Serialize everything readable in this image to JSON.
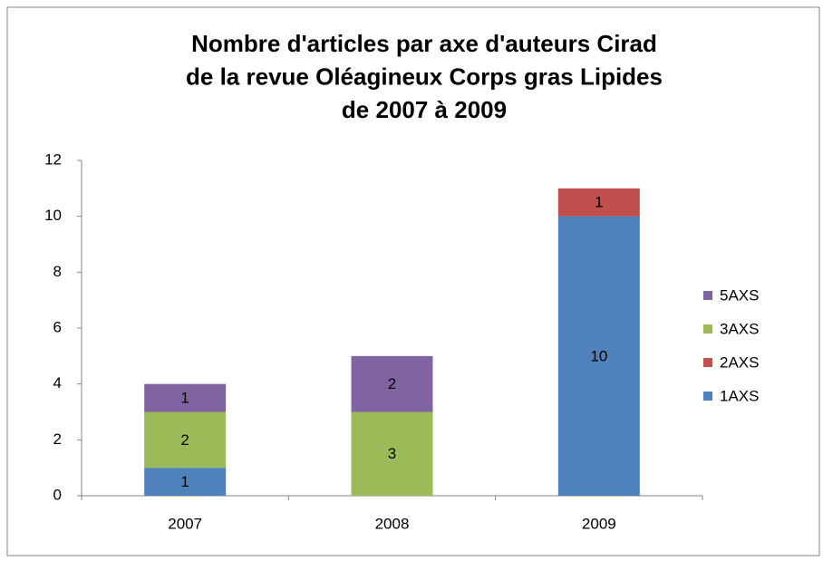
{
  "chart_data": {
    "type": "stacked_bar",
    "title": [
      "Nombre d'articles par axe d'auteurs Cirad",
      "de la revue Oléagineux Corps gras Lipides",
      "de 2007 à 2009"
    ],
    "categories": [
      "2007",
      "2008",
      "2009"
    ],
    "series": [
      {
        "name": "1AXS",
        "color": "#4f81bd",
        "values": [
          1,
          null,
          10
        ]
      },
      {
        "name": "2AXS",
        "color": "#c0504d",
        "values": [
          null,
          null,
          1
        ]
      },
      {
        "name": "3AXS",
        "color": "#9bbb59",
        "values": [
          2,
          3,
          null
        ]
      },
      {
        "name": "5AXS",
        "color": "#8064a2",
        "values": [
          1,
          2,
          null
        ]
      }
    ],
    "ylim": [
      0,
      12
    ],
    "yticks": [
      0,
      2,
      4,
      6,
      8,
      10,
      12
    ],
    "grid": false,
    "legend": "right"
  }
}
